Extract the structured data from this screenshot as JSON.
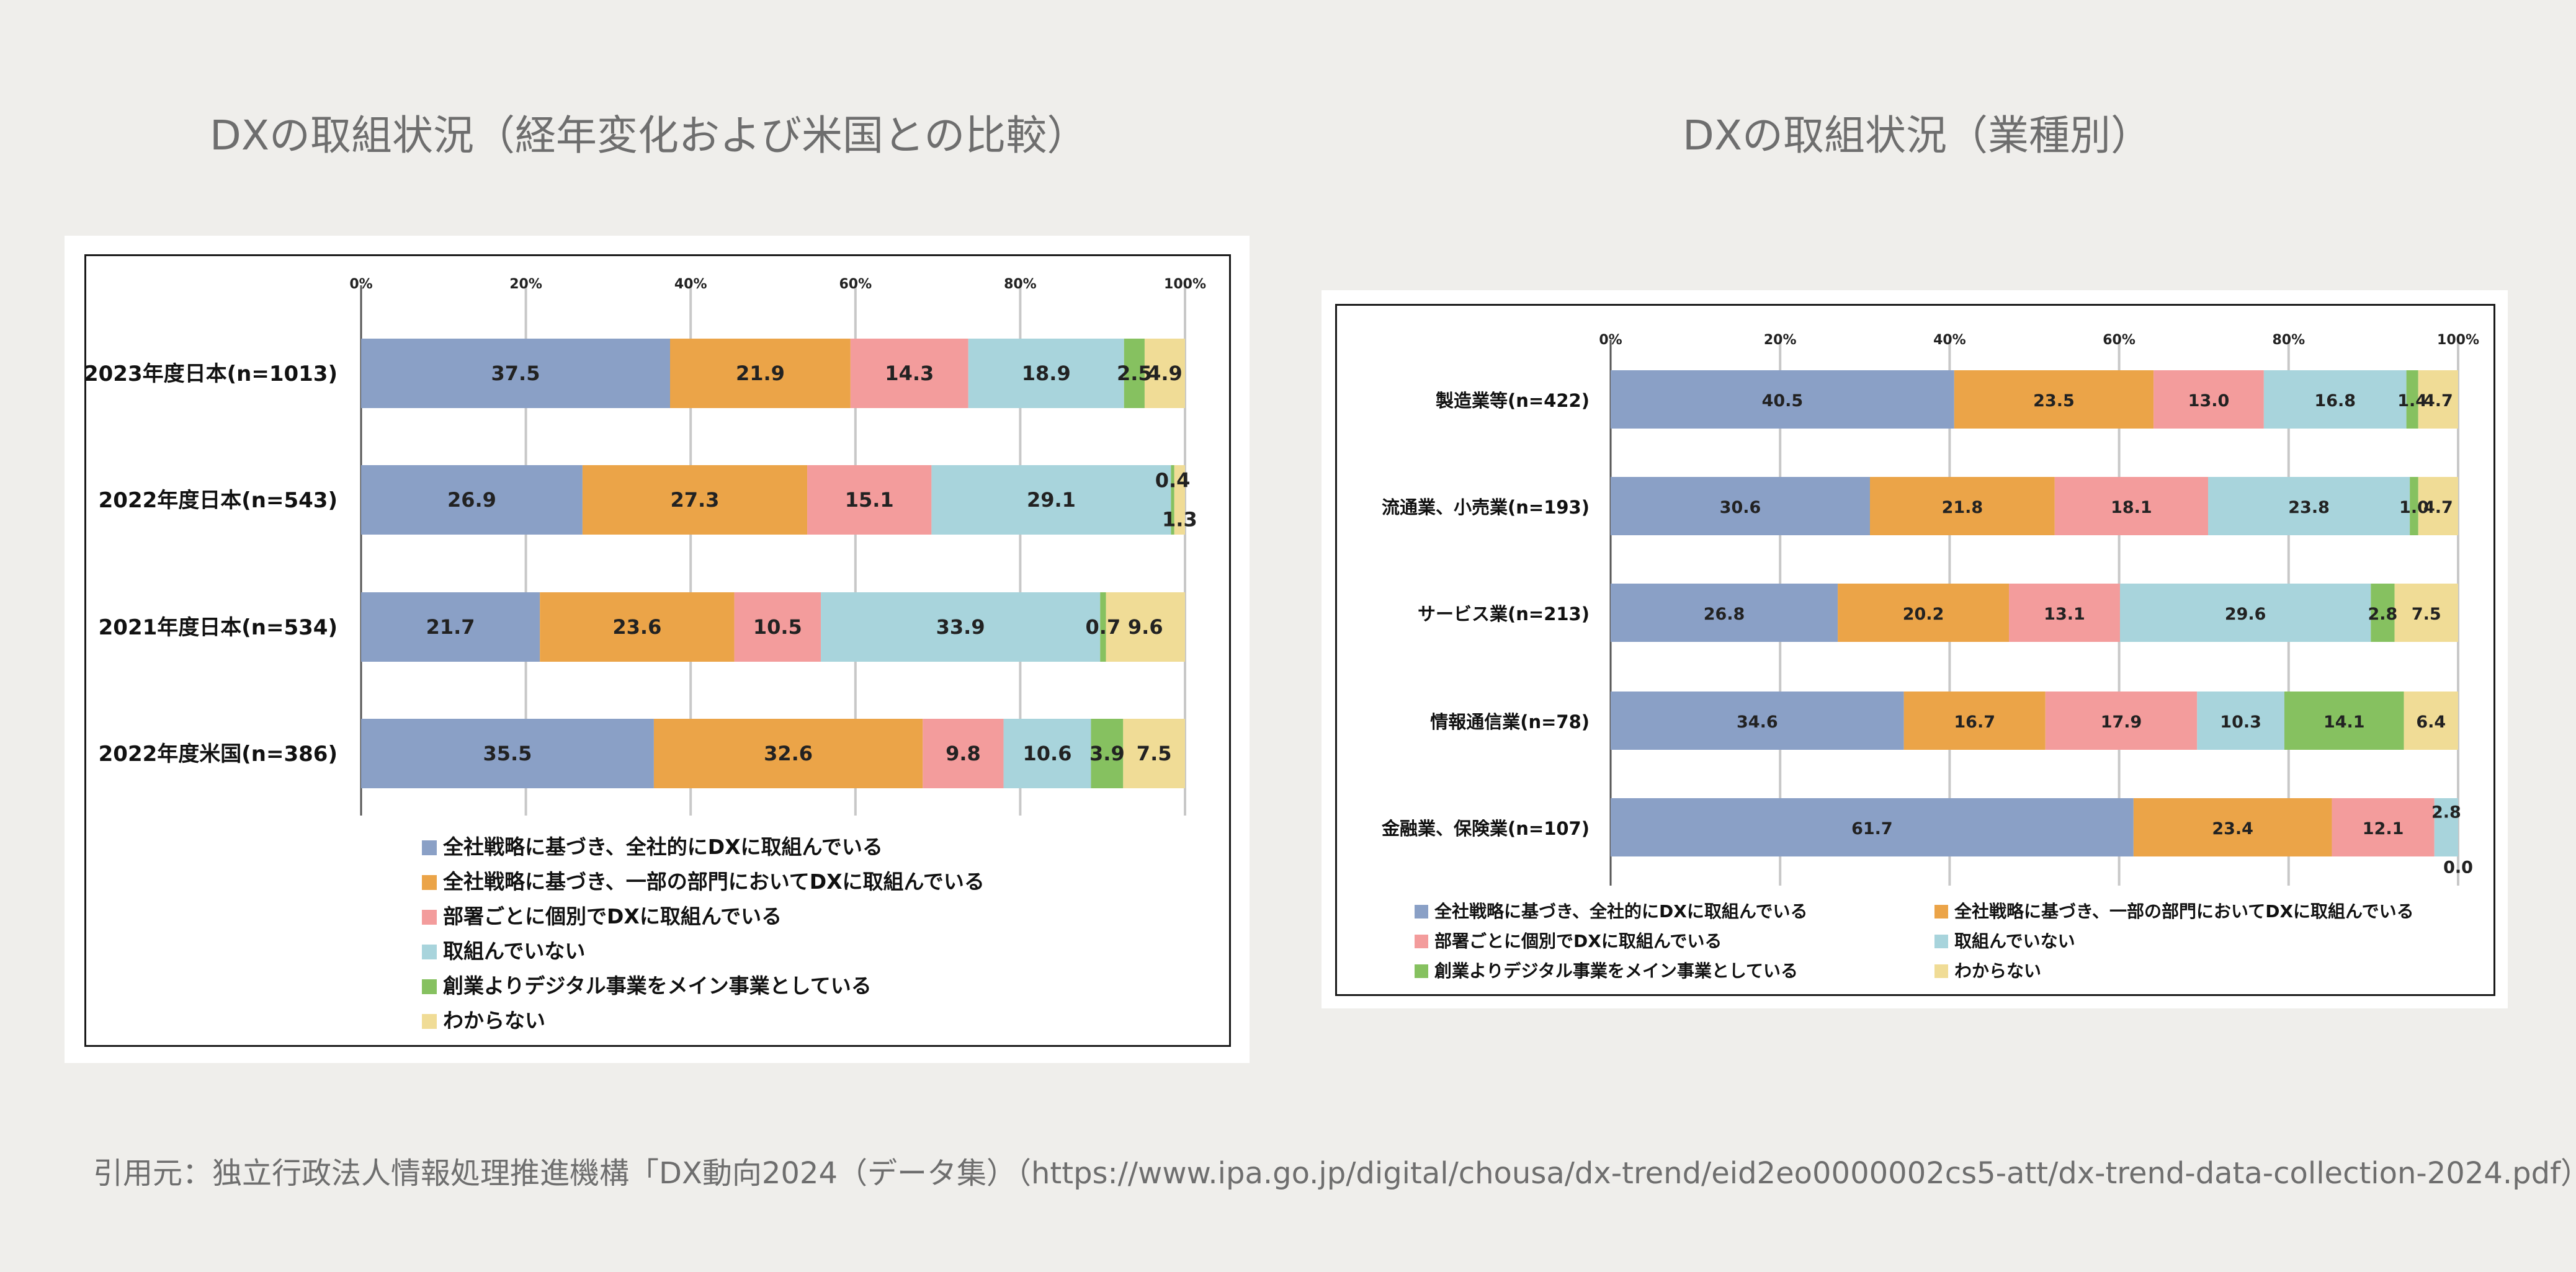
{
  "colors": [
    "#8aa0c6",
    "#eba448",
    "#f39c9c",
    "#a8d4dc",
    "#86c160",
    "#f0dc96"
  ],
  "legend": [
    "全社戦略に基づき、全社的にDXに取組んでいる",
    "全社戦略に基づき、一部の部門においてDXに取組んでいる",
    "部署ごとに個別でDXに取組んでいる",
    "取組んでいない",
    "創業よりデジタル事業をメイン事業としている",
    "わからない"
  ],
  "ticks": [
    "0%",
    "20%",
    "40%",
    "60%",
    "80%",
    "100%"
  ],
  "panels": {
    "left_title": "DXの取組状況（経年変化および米国との比較）",
    "right_title": "DXの取組状況（業種別）"
  },
  "citation": "引用元：独立行政法人情報処理推進機構「DX動向2024（データ集）（https://www.ipa.go.jp/digital/chousa/dx-trend/eid2eo0000002cs5-att/dx-trend-data-collection-2024.pdf）」",
  "chart_data": [
    {
      "type": "bar",
      "orientation": "horizontal",
      "stacked": true,
      "title": "DXの取組状況（経年変化および米国との比較）",
      "xlim": [
        0,
        100
      ],
      "legend_position": "bottom",
      "categories": [
        "2023年度日本(n=1013)",
        "2022年度日本(n=543)",
        "2021年度日本(n=534)",
        "2022年度米国(n=386)"
      ],
      "series": [
        {
          "name": "全社戦略に基づき、全社的にDXに取組んでいる",
          "values": [
            37.5,
            26.9,
            21.7,
            35.5
          ]
        },
        {
          "name": "全社戦略に基づき、一部の部門においてDXに取組んでいる",
          "values": [
            21.9,
            27.3,
            23.6,
            32.6
          ]
        },
        {
          "name": "部署ごとに個別でDXに取組んでいる",
          "values": [
            14.3,
            15.1,
            10.5,
            9.8
          ]
        },
        {
          "name": "取組んでいない",
          "values": [
            18.9,
            29.1,
            33.9,
            10.6
          ]
        },
        {
          "name": "創業よりデジタル事業をメイン事業としている",
          "values": [
            2.5,
            0.4,
            0.7,
            3.9
          ]
        },
        {
          "name": "わからない",
          "values": [
            4.9,
            1.3,
            9.6,
            7.5
          ]
        }
      ]
    },
    {
      "type": "bar",
      "orientation": "horizontal",
      "stacked": true,
      "title": "DXの取組状況（業種別）",
      "xlim": [
        0,
        100
      ],
      "legend_position": "bottom",
      "categories": [
        "製造業等(n=422)",
        "流通業、小売業(n=193)",
        "サービス業(n=213)",
        "情報通信業(n=78)",
        "金融業、保険業(n=107)"
      ],
      "series": [
        {
          "name": "全社戦略に基づき、全社的にDXに取組んでいる",
          "values": [
            40.5,
            30.6,
            26.8,
            34.6,
            61.7
          ]
        },
        {
          "name": "全社戦略に基づき、一部の部門においてDXに取組んでいる",
          "values": [
            23.5,
            21.8,
            20.2,
            16.7,
            23.4
          ]
        },
        {
          "name": "部署ごとに個別でDXに取組んでいる",
          "values": [
            13.0,
            18.1,
            13.1,
            17.9,
            12.1
          ]
        },
        {
          "name": "取組んでいない",
          "values": [
            16.8,
            23.8,
            29.6,
            10.3,
            2.8
          ]
        },
        {
          "name": "創業よりデジタル事業をメイン事業としている",
          "values": [
            1.4,
            1.0,
            2.8,
            14.1,
            0.0
          ]
        },
        {
          "name": "わからない",
          "values": [
            4.7,
            4.7,
            7.5,
            6.4,
            0.0
          ]
        }
      ]
    }
  ]
}
